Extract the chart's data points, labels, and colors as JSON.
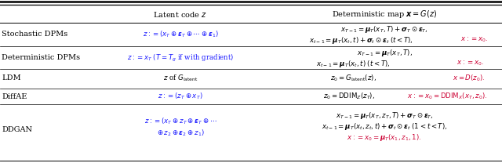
{
  "bg_color": "#ffffff",
  "text_color": "#000000",
  "blue_color": "#1a1aff",
  "red_color": "#cc0033",
  "header_fontsize": 7.0,
  "body_fontsize": 6.2,
  "label_fontsize": 7.0,
  "rows": [
    {
      "label": "Stochastic DPMs"
    },
    {
      "label": "Deterministic DPMs"
    },
    {
      "label": "LDM"
    },
    {
      "label": "DiffAE"
    },
    {
      "label": "DDGAN"
    }
  ]
}
